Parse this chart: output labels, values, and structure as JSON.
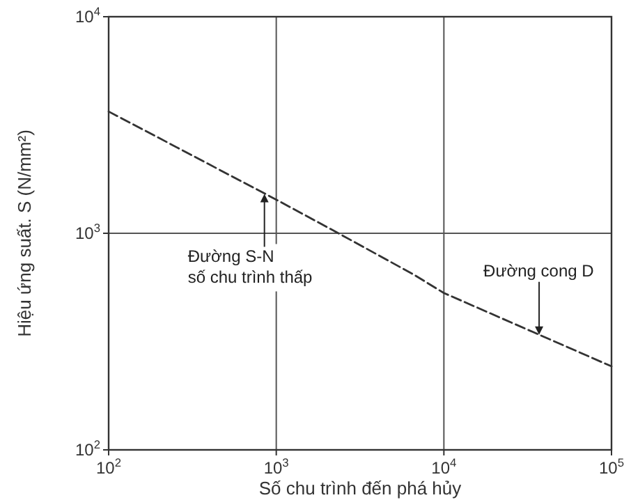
{
  "chart_data": {
    "type": "line",
    "xlabel": "Số chu trình đến phá hủy",
    "ylabel": "Hiệu ứng suất. S  (N/mm²)",
    "log": "xy",
    "grid": true,
    "line_style": "dashed",
    "marker": "none",
    "xlim": [
      100,
      100000
    ],
    "ylim": [
      100,
      10000
    ],
    "xticks": [
      {
        "value": 100,
        "label": "10$^{2}$"
      },
      {
        "value": 1000,
        "label": "10$^{3}$"
      },
      {
        "value": 10000,
        "label": "10$^{4}$"
      },
      {
        "value": 100000,
        "label": "10$^{5}$"
      }
    ],
    "yticks": [
      {
        "value": 100,
        "label": "10$^{2}$"
      },
      {
        "value": 1000,
        "label": "10$^{3}$"
      },
      {
        "value": 10000,
        "label": "10$^{4}$"
      }
    ],
    "series": [
      {
        "color": "#333333",
        "x": [
          100,
          1000,
          2350,
          6600,
          10000,
          100000
        ],
        "values": [
          3650,
          1430,
          1000,
          645,
          530,
          243
        ]
      }
    ],
    "annotations": [
      {
        "text": "Đường S-N\nsố chu trình thấp",
        "x": 850,
        "y": 1520
      },
      {
        "text": "Đường cong D",
        "x": 37000,
        "y": 340
      }
    ]
  }
}
